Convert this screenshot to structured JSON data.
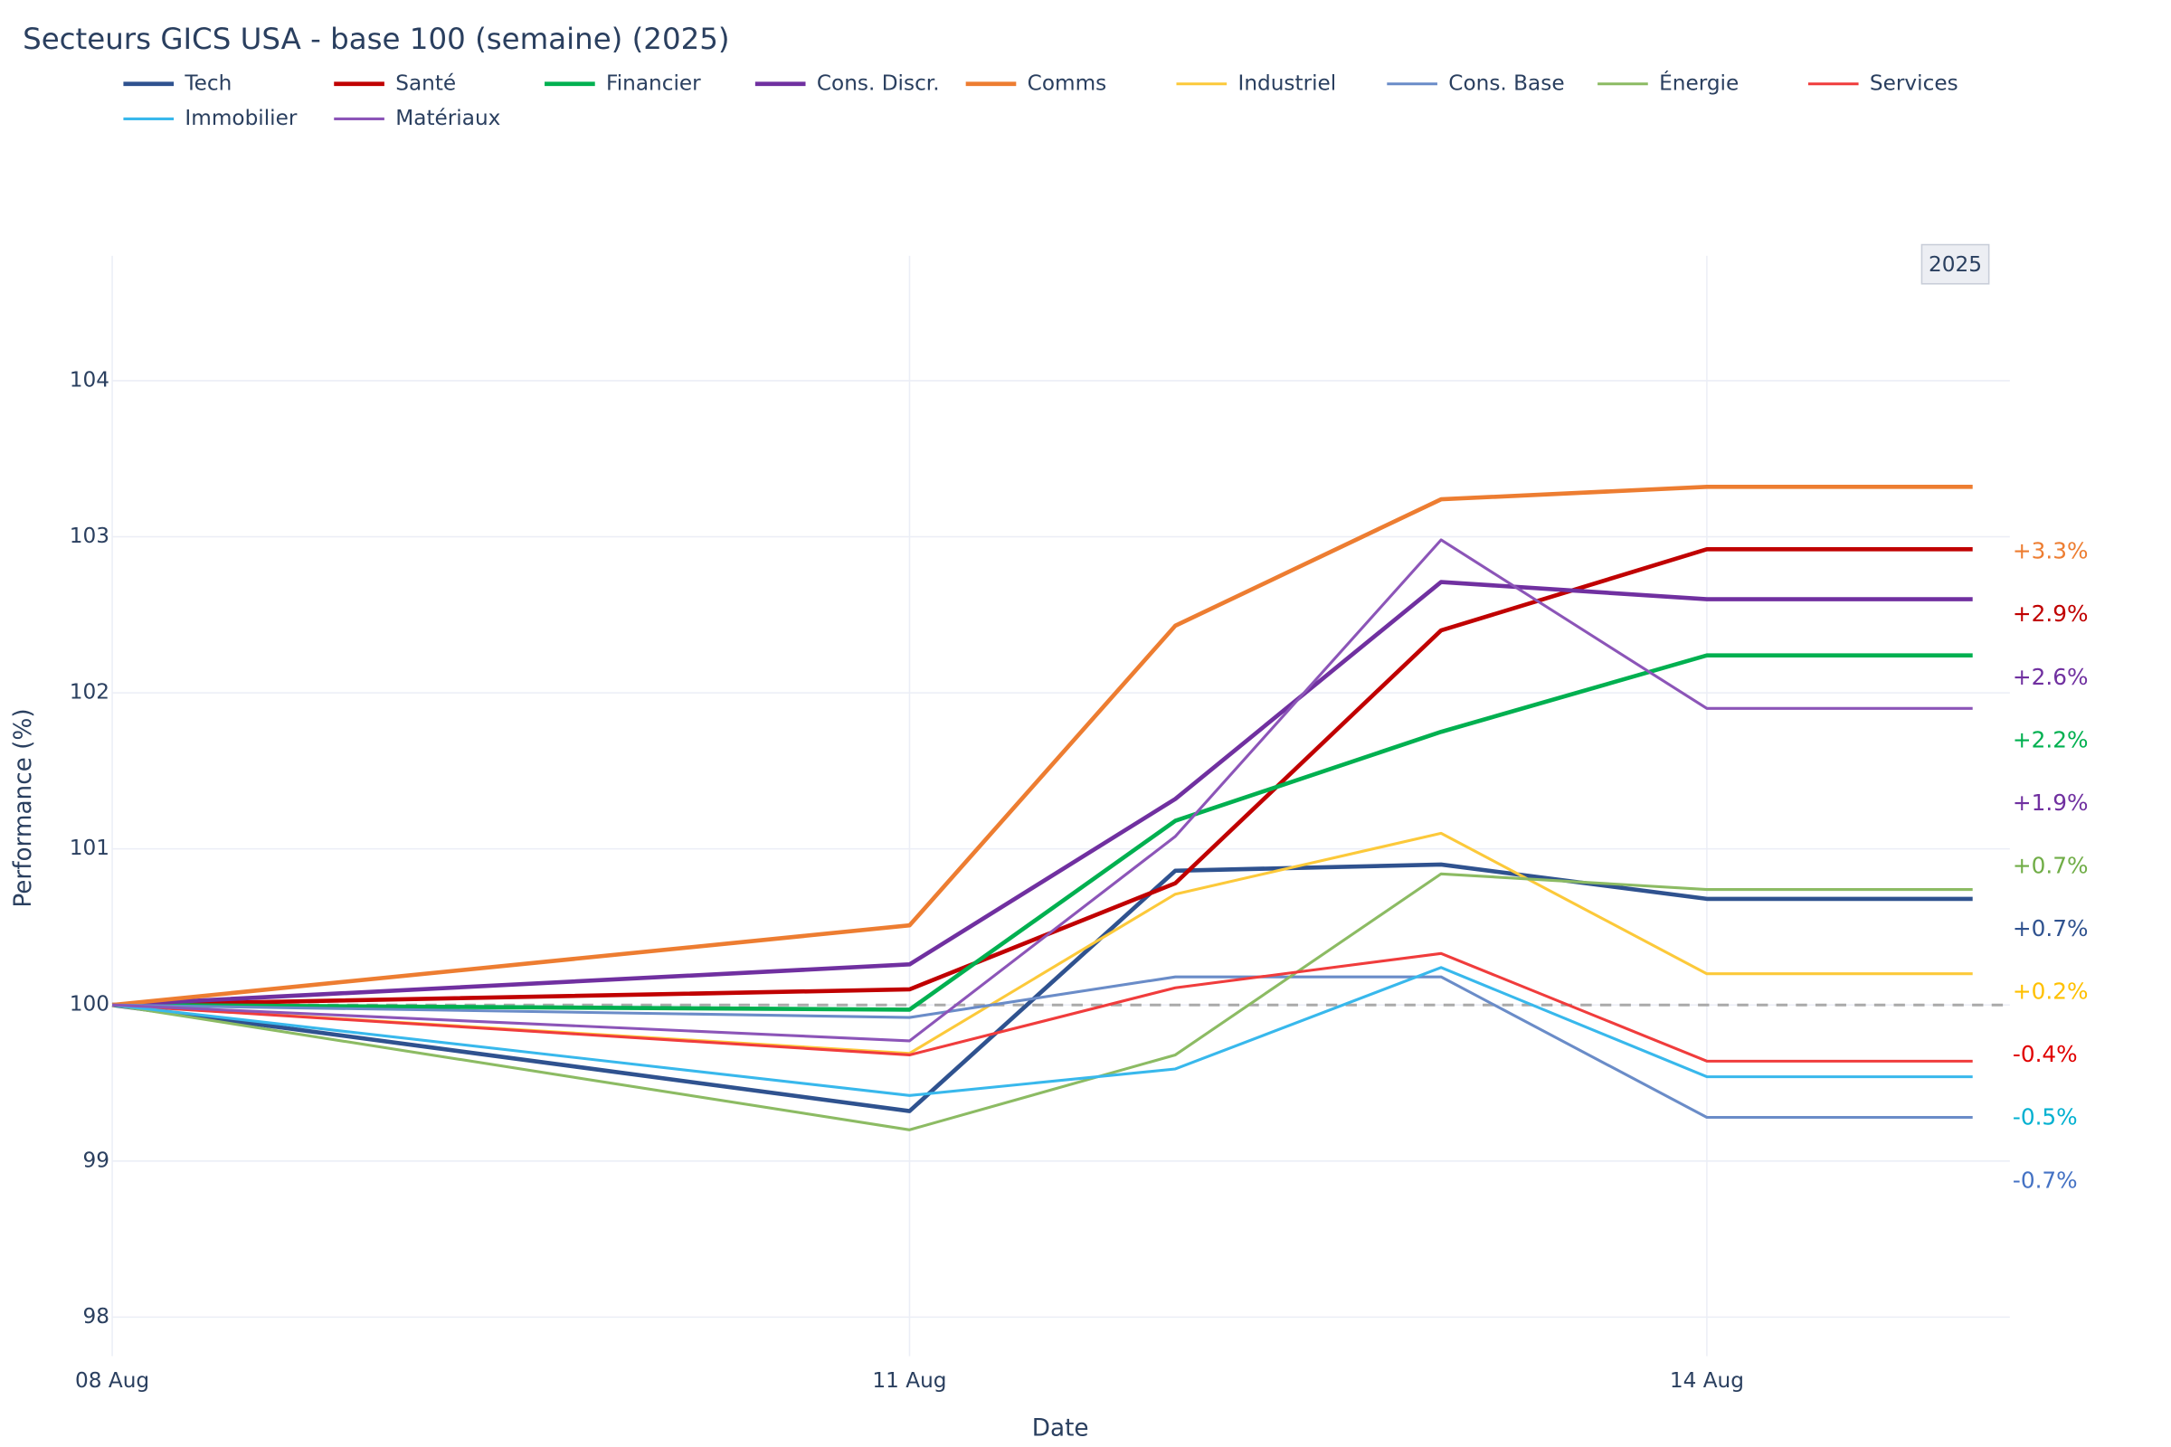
{
  "chart_data": {
    "type": "line",
    "title": "Secteurs GICS USA - base 100 (semaine) (2025)",
    "x_label": "Date",
    "y_label": "Performance (%)",
    "badge": "2025",
    "x": [
      8,
      11,
      12,
      13,
      14,
      15
    ],
    "xlim": [
      8,
      15.14
    ],
    "xticks": [
      {
        "value": 8,
        "label": "08 Aug"
      },
      {
        "value": 11,
        "label": "11 Aug"
      },
      {
        "value": 14,
        "label": "14 Aug"
      }
    ],
    "ylim": [
      97.75,
      104.8
    ],
    "yticks": [
      98,
      99,
      100,
      101,
      102,
      103,
      104
    ],
    "grid": true,
    "reference_line": 100,
    "series": [
      {
        "name": "Tech",
        "color": "#2f528f",
        "width": 3,
        "values": [
          100,
          99.32,
          100.86,
          100.9,
          100.68,
          100.68
        ]
      },
      {
        "name": "Santé",
        "color": "#c00000",
        "width": 3,
        "values": [
          100,
          100.1,
          100.78,
          102.4,
          102.92,
          102.92
        ]
      },
      {
        "name": "Financier",
        "color": "#00b050",
        "width": 3,
        "values": [
          100,
          99.97,
          101.18,
          101.75,
          102.24,
          102.24
        ]
      },
      {
        "name": "Cons. Discr.",
        "color": "#7030a0",
        "width": 3,
        "values": [
          100,
          100.26,
          101.32,
          102.71,
          102.6,
          102.6
        ]
      },
      {
        "name": "Comms",
        "color": "#ed7d31",
        "width": 3,
        "values": [
          100,
          100.51,
          102.43,
          103.24,
          103.32,
          103.32
        ]
      },
      {
        "name": "Industriel",
        "color": "#fcc93a",
        "width": 2,
        "values": [
          100,
          99.69,
          100.71,
          101.1,
          100.2,
          100.2
        ]
      },
      {
        "name": "Cons. Base",
        "color": "#6a8cc8",
        "width": 2,
        "values": [
          100,
          99.92,
          100.18,
          100.18,
          99.28,
          99.28
        ]
      },
      {
        "name": "Énergie",
        "color": "#8cbb63",
        "width": 2,
        "values": [
          100,
          99.2,
          99.68,
          100.84,
          100.74,
          100.74
        ]
      },
      {
        "name": "Services",
        "color": "#f03c3c",
        "width": 2,
        "values": [
          100,
          99.68,
          100.11,
          100.33,
          99.64,
          99.64
        ]
      },
      {
        "name": "Immobilier",
        "color": "#38b8ec",
        "width": 2,
        "values": [
          100,
          99.42,
          99.59,
          100.24,
          99.54,
          99.54
        ]
      },
      {
        "name": "Matériaux",
        "color": "#8c55b8",
        "width": 2,
        "values": [
          100,
          99.77,
          101.08,
          102.98,
          101.9,
          101.9
        ]
      }
    ],
    "end_labels": [
      {
        "label": "+3.3%",
        "color": "#ed7d31"
      },
      {
        "label": "+2.9%",
        "color": "#c00000"
      },
      {
        "label": "+2.6%",
        "color": "#7030a0"
      },
      {
        "label": "+2.2%",
        "color": "#00b050"
      },
      {
        "label": "+1.9%",
        "color": "#7030a0"
      },
      {
        "label": "+0.7%",
        "color": "#70ad47"
      },
      {
        "label": "+0.7%",
        "color": "#2f528f"
      },
      {
        "label": "+0.2%",
        "color": "#ffc000"
      },
      {
        "label": "-0.4%",
        "color": "#e00000"
      },
      {
        "label": "-0.5%",
        "color": "#00b0d0"
      },
      {
        "label": "-0.7%",
        "color": "#4472c4"
      }
    ]
  }
}
